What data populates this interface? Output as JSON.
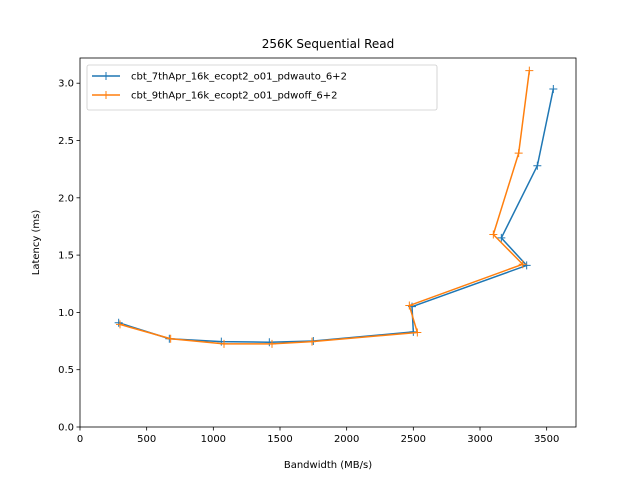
{
  "chart_data": {
    "type": "line",
    "title": "256K  Sequential Read",
    "xlabel": "Bandwidth (MB/s)",
    "ylabel": "Latency (ms)",
    "xlim": [
      0,
      3720
    ],
    "ylim": [
      0,
      3.22
    ],
    "xticks": [
      0,
      500,
      1000,
      1500,
      2000,
      2500,
      3000,
      3500
    ],
    "yticks": [
      0.0,
      0.5,
      1.0,
      1.5,
      2.0,
      2.5,
      3.0
    ],
    "xtick_labels": [
      "0",
      "500",
      "1000",
      "1500",
      "2000",
      "2500",
      "3000",
      "3500"
    ],
    "ytick_labels": [
      "0.0",
      "0.5",
      "1.0",
      "1.5",
      "2.0",
      "2.5",
      "3.0"
    ],
    "grid": false,
    "legend_position": "top-left",
    "series": [
      {
        "name": "cbt_7thApr_16k_ecopt2_o01_pdwauto_6+2",
        "color": "#1f77b4",
        "marker": "plus",
        "points": [
          [
            290,
            0.91
          ],
          [
            670,
            0.77
          ],
          [
            1060,
            0.745
          ],
          [
            1420,
            0.74
          ],
          [
            1750,
            0.75
          ],
          [
            2500,
            0.83
          ],
          [
            2490,
            1.05
          ],
          [
            3350,
            1.41
          ],
          [
            3160,
            1.65
          ],
          [
            3430,
            2.28
          ],
          [
            3550,
            2.95
          ]
        ]
      },
      {
        "name": "cbt_9thApr_16k_ecopt2_o01_pdwoff_6+2",
        "color": "#ff7f0e",
        "marker": "plus",
        "points": [
          [
            300,
            0.895
          ],
          [
            680,
            0.77
          ],
          [
            1080,
            0.725
          ],
          [
            1440,
            0.725
          ],
          [
            1740,
            0.745
          ],
          [
            2530,
            0.825
          ],
          [
            2470,
            1.06
          ],
          [
            3320,
            1.42
          ],
          [
            3100,
            1.68
          ],
          [
            3290,
            2.39
          ],
          [
            3370,
            3.11
          ]
        ]
      }
    ]
  }
}
